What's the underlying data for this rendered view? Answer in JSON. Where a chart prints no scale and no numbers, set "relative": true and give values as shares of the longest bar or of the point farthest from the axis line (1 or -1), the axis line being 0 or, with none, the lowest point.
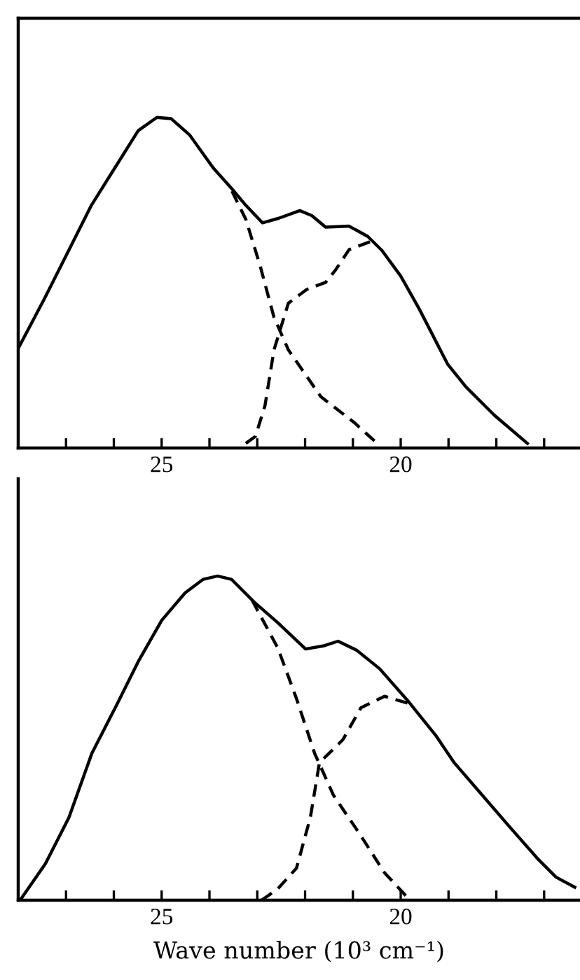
{
  "chart_data": [
    {
      "type": "line",
      "relative": true,
      "tick_labels": "x",
      "xlim": [
        28,
        16.25
      ],
      "xticks": [
        {
          "value": 27,
          "label": null
        },
        {
          "value": 26,
          "label": null
        },
        25,
        {
          "value": 24,
          "label": null
        },
        {
          "value": 23,
          "label": null
        },
        {
          "value": 22,
          "label": null
        },
        {
          "value": 21,
          "label": null
        },
        20,
        {
          "value": 19,
          "label": null
        },
        {
          "value": 18,
          "label": null
        },
        {
          "value": 17,
          "label": null
        }
      ],
      "series": [
        {
          "color": "#000000",
          "line_style": "solid",
          "x": [
            27.99,
            27.45,
            26.96,
            26.47,
            25.98,
            25.49,
            25.1,
            24.8,
            24.41,
            23.92,
            23.53,
            23.24,
            22.89,
            22.55,
            22.11,
            21.86,
            21.57,
            21.08,
            20.69,
            20.39,
            20.0,
            19.61,
            19.02,
            18.63,
            18.04,
            17.35
          ],
          "values": [
            0.304,
            0.452,
            0.593,
            0.734,
            0.847,
            0.96,
            1.0,
            0.996,
            0.946,
            0.847,
            0.784,
            0.734,
            0.681,
            0.695,
            0.718,
            0.703,
            0.668,
            0.671,
            0.64,
            0.597,
            0.52,
            0.42,
            0.254,
            0.184,
            0.099,
            0.014
          ]
        },
        {
          "color": "#000000",
          "line_style": "dashed",
          "x": [
            23.53,
            23.24,
            22.94,
            22.65,
            22.35,
            21.67,
            20.98,
            20.44
          ],
          "values": [
            0.777,
            0.692,
            0.551,
            0.395,
            0.297,
            0.155,
            0.078,
            0.007
          ]
        },
        {
          "color": "#000000",
          "line_style": "dashed",
          "x": [
            23.24,
            23.04,
            22.84,
            22.65,
            22.35,
            21.96,
            21.57,
            21.37,
            21.08,
            20.64
          ],
          "values": [
            0.014,
            0.035,
            0.127,
            0.297,
            0.438,
            0.48,
            0.501,
            0.537,
            0.6,
            0.624
          ]
        }
      ]
    },
    {
      "type": "line",
      "relative": true,
      "tick_labels": "x",
      "xlim": [
        28,
        16.25
      ],
      "xlabel": "Wave number (10³ cm⁻¹)",
      "xticks": [
        {
          "value": 27,
          "label": null
        },
        {
          "value": 26,
          "label": null
        },
        25,
        {
          "value": 24,
          "label": null
        },
        {
          "value": 23,
          "label": null
        },
        {
          "value": 22,
          "label": null
        },
        {
          "value": 21,
          "label": null
        },
        20,
        {
          "value": 19,
          "label": null
        },
        {
          "value": 18,
          "label": null
        },
        {
          "value": 17,
          "label": null
        }
      ],
      "series": [
        {
          "color": "#000000",
          "line_style": "solid",
          "x": [
            27.96,
            27.43,
            26.94,
            26.46,
            25.97,
            25.49,
            25.0,
            24.51,
            24.13,
            23.83,
            23.54,
            23.06,
            22.57,
            21.99,
            21.6,
            21.31,
            20.92,
            20.44,
            19.85,
            19.27,
            18.88,
            18.3,
            17.72,
            17.13,
            16.75,
            16.36
          ],
          "values": [
            0,
            0.113,
            0.255,
            0.453,
            0.594,
            0.736,
            0.863,
            0.948,
            0.99,
            1.0,
            0.99,
            0.919,
            0.856,
            0.775,
            0.785,
            0.799,
            0.771,
            0.714,
            0.615,
            0.509,
            0.424,
            0.325,
            0.226,
            0.127,
            0.071,
            0.04
          ]
        },
        {
          "color": "#000000",
          "line_style": "dashed",
          "x": [
            23.11,
            22.57,
            22.18,
            21.8,
            21.41,
            20.83,
            20.34,
            19.85
          ],
          "values": [
            0.926,
            0.778,
            0.622,
            0.453,
            0.325,
            0.198,
            0.085,
            0.007
          ]
        },
        {
          "color": "#000000",
          "line_style": "dashed",
          "x": [
            22.91,
            22.57,
            22.18,
            21.89,
            21.7,
            21.21,
            20.83,
            20.34,
            19.85
          ],
          "values": [
            0,
            0.035,
            0.099,
            0.255,
            0.424,
            0.495,
            0.594,
            0.629,
            0.608
          ]
        }
      ]
    }
  ]
}
